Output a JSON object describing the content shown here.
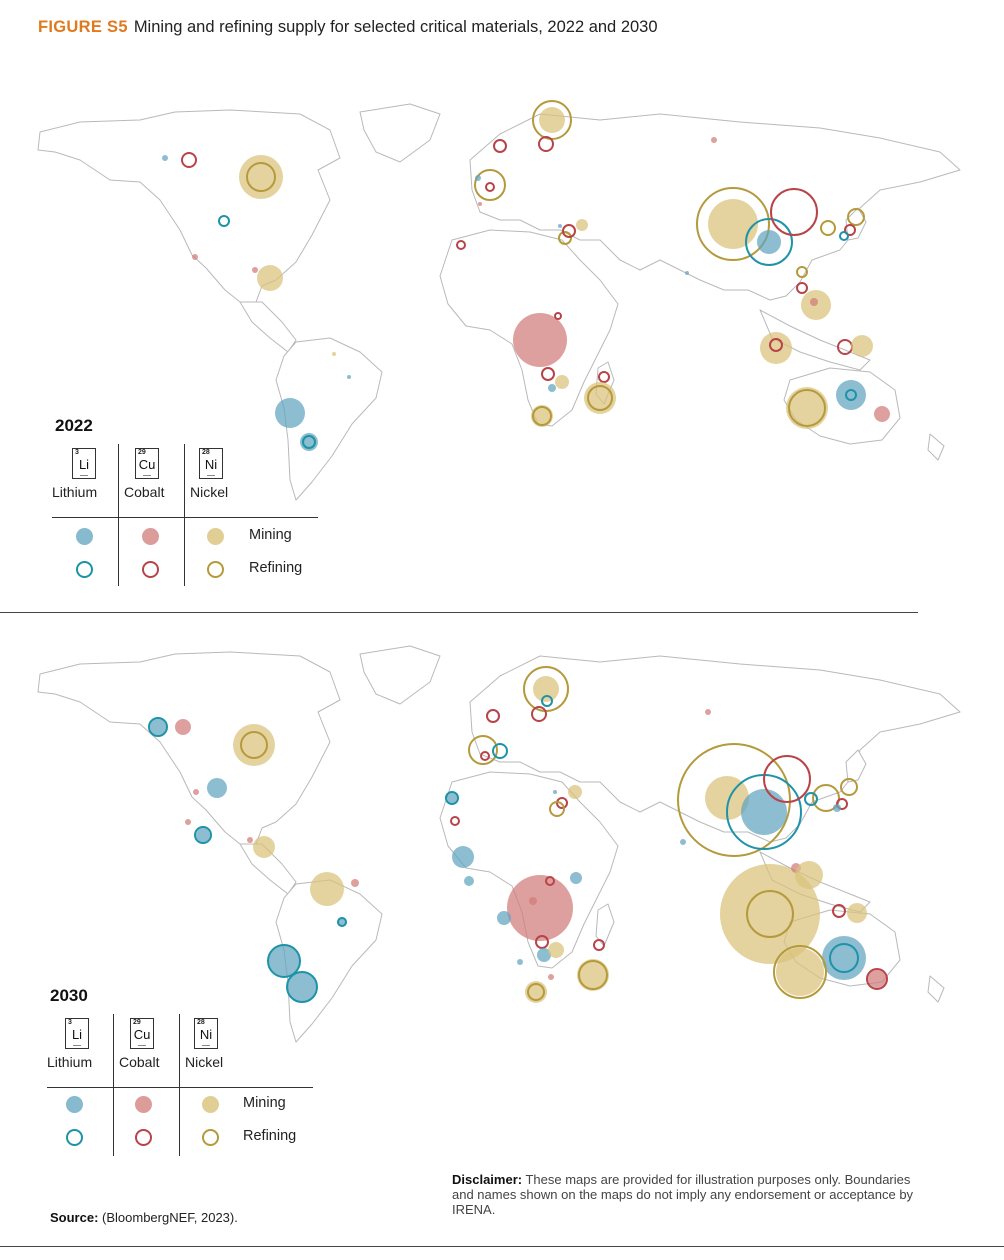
{
  "figure": {
    "label": "FIGURE S5",
    "title": "Mining and refining supply for selected critical materials, 2022 and 2030"
  },
  "colors": {
    "lithium": "#5fa3bf",
    "lithium_ring": "#1e93a8",
    "cobalt": "#d07b78",
    "cobalt_ring": "#b8444a",
    "nickel": "#d9c27a",
    "nickel_ring": "#b59a3c"
  },
  "legend": {
    "elements": [
      {
        "number": "3",
        "symbol": "Li",
        "name": "Lithium"
      },
      {
        "number": "29",
        "symbol": "Cu",
        "name": "Cobalt"
      },
      {
        "number": "28",
        "symbol": "Ni",
        "name": "Nickel"
      }
    ],
    "mining": "Mining",
    "refining": "Refining"
  },
  "panels": [
    {
      "year": "2022"
    },
    {
      "year": "2030"
    }
  ],
  "source": {
    "label": "Source:",
    "text": " (BloombergNEF, 2023)."
  },
  "disclaimer": {
    "label": "Disclaimer:",
    "text": " These maps are provided for illustration purposes only. Boundaries and names shown on the maps do not imply any endorsement or acceptance by IRENA."
  }
}
